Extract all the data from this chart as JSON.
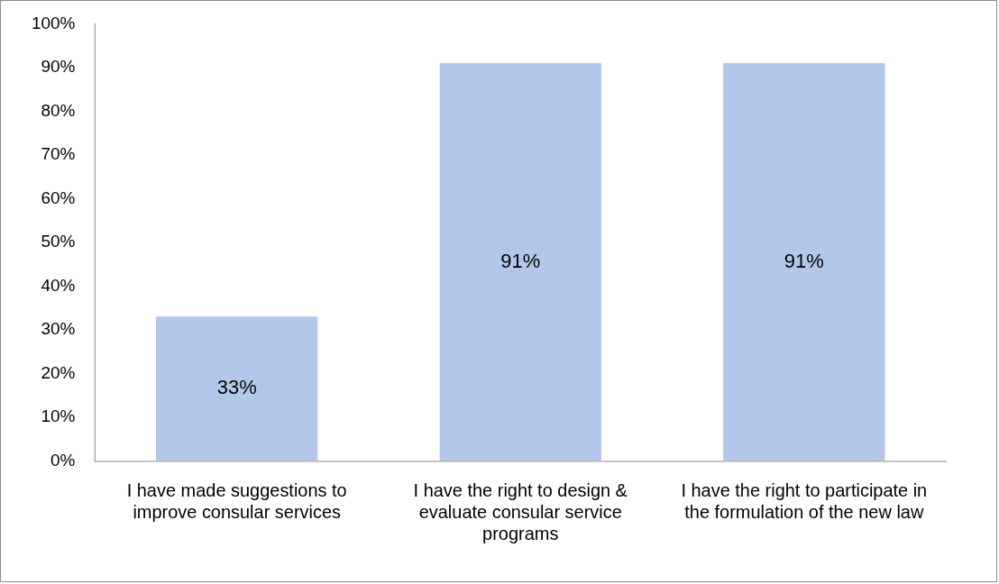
{
  "chart_data": {
    "type": "bar",
    "categories": [
      "I have made suggestions to improve consular services",
      "I have the right to design & evaluate consular service programs",
      "I have the right to participate in the formulation of the new law"
    ],
    "values": [
      33,
      91,
      91
    ],
    "color": "#b3c7ea",
    "ylim": [
      0,
      100
    ],
    "yticks": [
      {
        "value": 0,
        "label": "0%"
      },
      {
        "value": 10,
        "label": "10%"
      },
      {
        "value": 20,
        "label": "20%"
      },
      {
        "value": 30,
        "label": "30%"
      },
      {
        "value": 40,
        "label": "40%"
      },
      {
        "value": 50,
        "label": "50%"
      },
      {
        "value": 60,
        "label": "60%"
      },
      {
        "value": 70,
        "label": "70%"
      },
      {
        "value": 80,
        "label": "80%"
      },
      {
        "value": 90,
        "label": "90%"
      },
      {
        "value": 100,
        "label": "100%"
      }
    ],
    "value_labels": [
      "33%",
      "91%",
      "91%"
    ],
    "grid": false,
    "legend": false
  }
}
